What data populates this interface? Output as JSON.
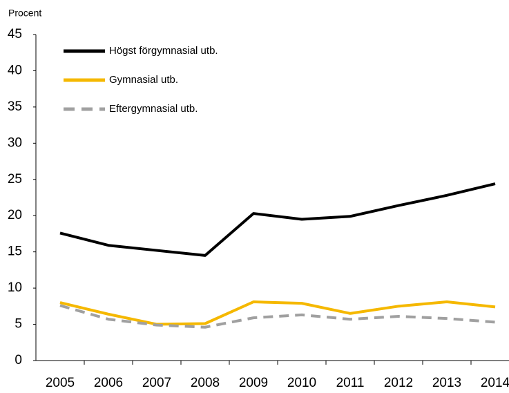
{
  "chart_data": {
    "type": "line",
    "y_axis_label": "Procent",
    "categories": [
      "2005",
      "2006",
      "2007",
      "2008",
      "2009",
      "2010",
      "2011",
      "2012",
      "2013",
      "2014"
    ],
    "series": [
      {
        "name": "Högst förgymnasial utb.",
        "color": "#000000",
        "dashed": false,
        "values": [
          17.6,
          15.9,
          15.2,
          14.5,
          20.3,
          19.5,
          19.9,
          21.4,
          22.8,
          24.4
        ]
      },
      {
        "name": "Gymnasial utb.",
        "color": "#f5b800",
        "dashed": false,
        "values": [
          8.0,
          6.4,
          5.0,
          5.1,
          8.1,
          7.9,
          6.5,
          7.5,
          8.1,
          7.4
        ]
      },
      {
        "name": "Eftergymnasial utb.",
        "color": "#a0a0a0",
        "dashed": true,
        "values": [
          7.6,
          5.7,
          4.9,
          4.6,
          5.9,
          6.3,
          5.7,
          6.1,
          5.8,
          5.3
        ]
      }
    ],
    "ylim": [
      0,
      45
    ],
    "yticks": [
      0,
      5,
      10,
      15,
      20,
      25,
      30,
      35,
      40,
      45
    ],
    "legend": "upper left"
  }
}
